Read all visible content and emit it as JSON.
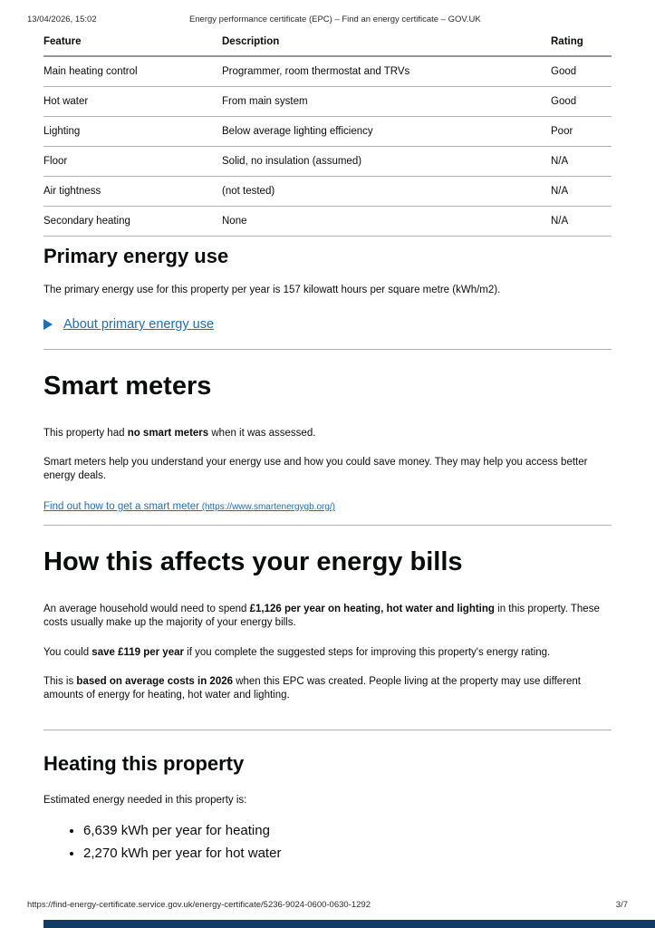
{
  "print_header": {
    "datetime": "13/04/2026, 15:02",
    "title": "Energy performance certificate (EPC) – Find an energy certificate – GOV.UK"
  },
  "features_table": {
    "headers": {
      "feature": "Feature",
      "description": "Description",
      "rating": "Rating"
    },
    "rows": [
      {
        "feature": "Main heating control",
        "description": "Programmer, room thermostat and TRVs",
        "rating": "Good"
      },
      {
        "feature": "Hot water",
        "description": "From main system",
        "rating": "Good"
      },
      {
        "feature": "Lighting",
        "description": "Below average lighting efficiency",
        "rating": "Poor"
      },
      {
        "feature": "Floor",
        "description": "Solid, no insulation (assumed)",
        "rating": "N/A"
      },
      {
        "feature": "Air tightness",
        "description": "(not tested)",
        "rating": "N/A"
      },
      {
        "feature": "Secondary heating",
        "description": "None",
        "rating": "N/A"
      }
    ]
  },
  "primary_energy": {
    "heading": "Primary energy use",
    "body": "The primary energy use for this property per year is 157 kilowatt hours per square metre (kWh/m2).",
    "details_label": "About primary energy use"
  },
  "smart_meters": {
    "heading": "Smart meters",
    "p1_prefix": "This property had ",
    "p1_bold": "no smart meters",
    "p1_suffix": " when it was assessed.",
    "p2": "Smart meters help you understand your energy use and how you could save money. They may help you access better energy deals.",
    "link_text": "Find out how to get a smart meter",
    "link_url_note": " (https://www.smartenergygb.org/)"
  },
  "energy_bills": {
    "heading": "How this affects your energy bills",
    "p1_prefix": "An average household would need to spend ",
    "p1_bold": "£1,126 per year on heating, hot water and lighting",
    "p1_suffix": " in this property. These costs usually make up the majority of your energy bills.",
    "p2_prefix": "You could ",
    "p2_bold": "save £119 per year",
    "p2_suffix": " if you complete the suggested steps for improving this property's energy rating.",
    "p3_prefix": "This is ",
    "p3_bold": "based on average costs in 2026",
    "p3_suffix": " when this EPC was created. People living at the property may use different amounts of energy for heating, hot water and lighting."
  },
  "heating": {
    "heading": "Heating this property",
    "intro": "Estimated energy needed in this property is:",
    "items": [
      "6,639 kWh per year for heating",
      "2,270 kWh per year for hot water"
    ]
  },
  "print_footer": {
    "url": "https://find-energy-certificate.service.gov.uk/energy-certificate/5236-9024-0600-0630-1292",
    "page_indicator": "3/7"
  },
  "colors": {
    "link_blue": "#1d70b8",
    "text": "#0b0c0c",
    "rule_grey": "#b1b4b6",
    "next_page_bar": "#123c63"
  }
}
